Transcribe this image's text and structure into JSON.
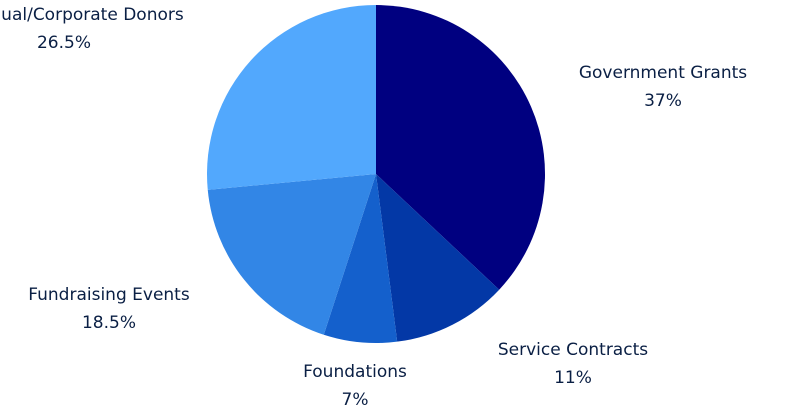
{
  "chart_data": {
    "type": "pie",
    "slices": [
      {
        "label": "Government Grants",
        "value": 37,
        "value_label": "37%",
        "color": "#000080"
      },
      {
        "label": "Service Contracts",
        "value": 11,
        "value_label": "11%",
        "color": "#0338a6"
      },
      {
        "label": "Foundations",
        "value": 7,
        "value_label": "7%",
        "color": "#1460cc"
      },
      {
        "label": "Fundraising Events",
        "value": 18.5,
        "value_label": "18.5%",
        "color": "#3286e6"
      },
      {
        "label": "Individual/Corporate Donors",
        "value": 26.5,
        "value_label": "26.5%",
        "color": "#52a8fd"
      }
    ],
    "start": "12 o'clock",
    "direction": "clockwise",
    "legend": "none",
    "labels": "outside"
  }
}
